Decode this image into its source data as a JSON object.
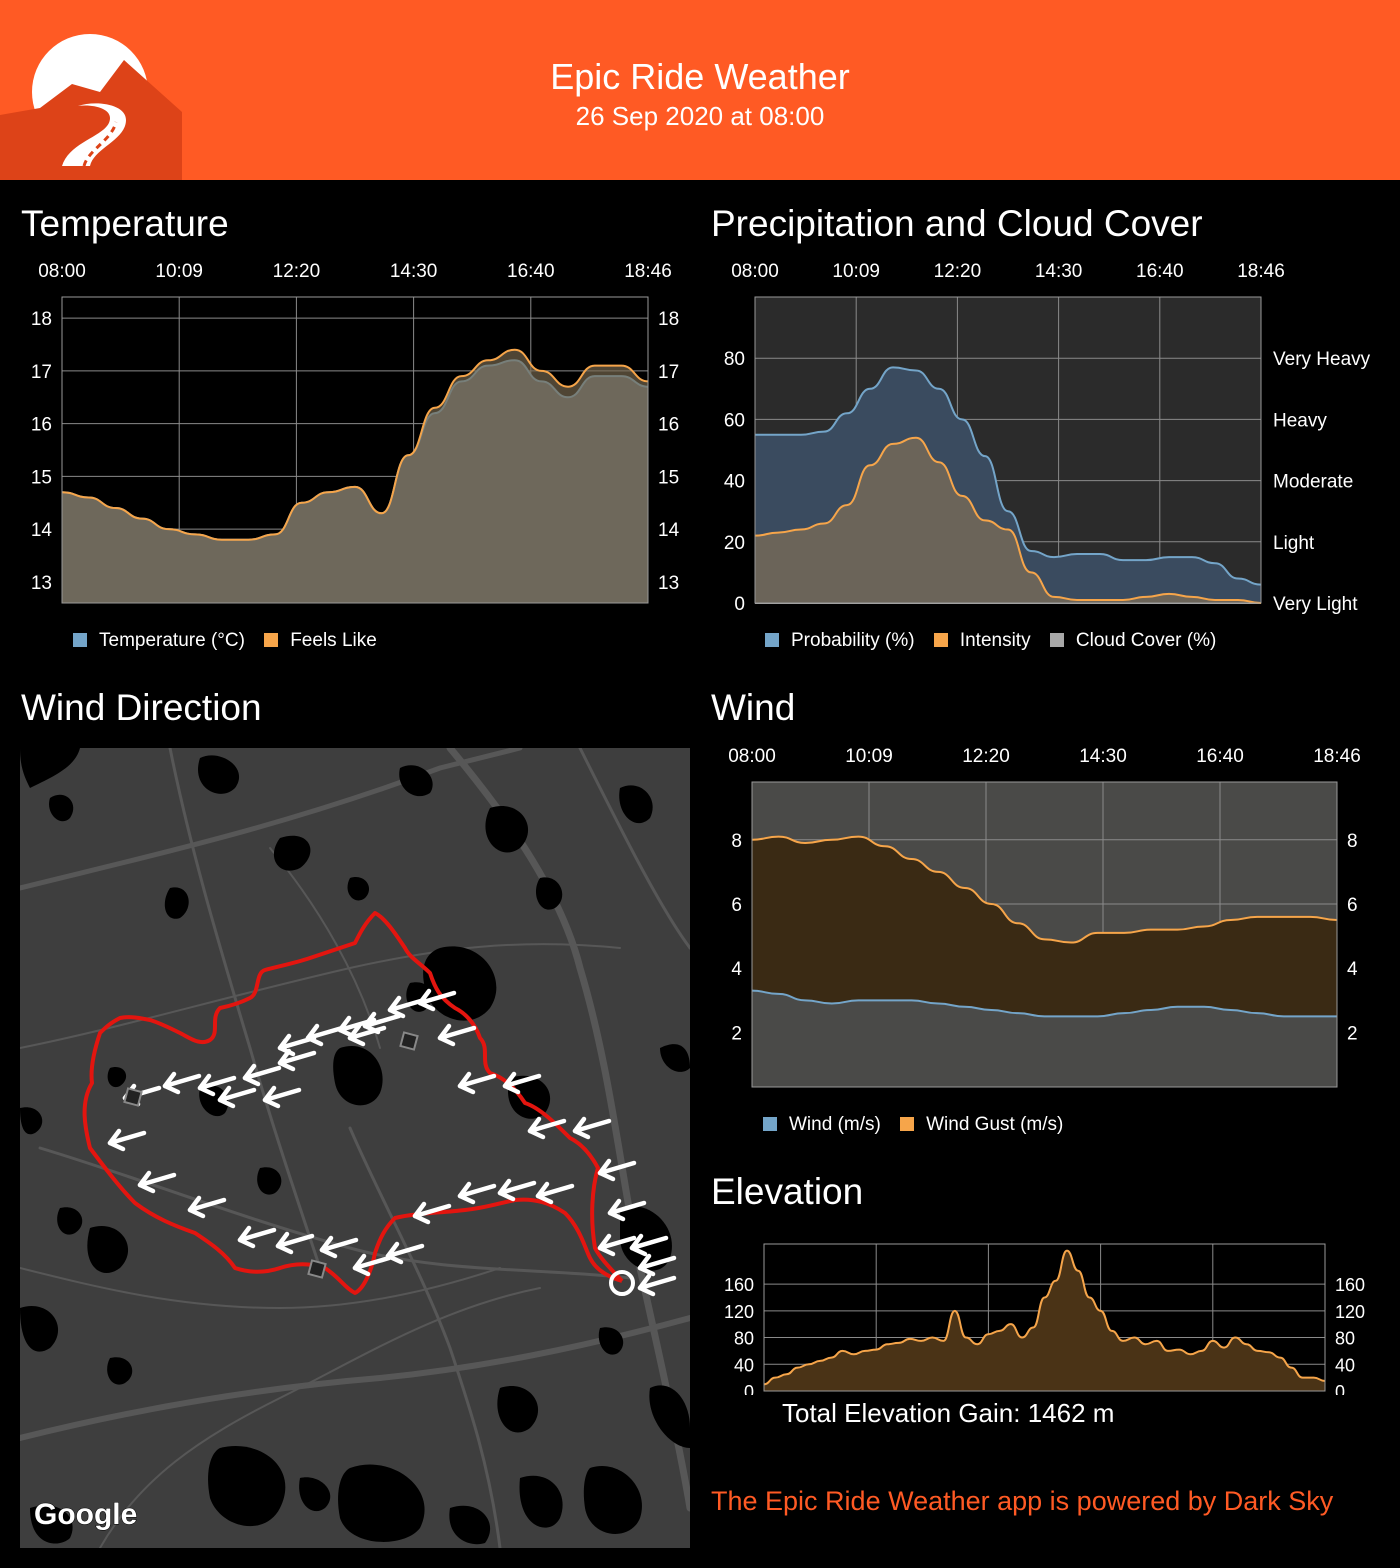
{
  "header": {
    "title": "Epic Ride Weather",
    "subtitle": "26 Sep 2020 at 08:00",
    "logo_icon": "mountain-road-logo-icon",
    "background_color": "#FF5A24"
  },
  "time_ticks": [
    "08:00",
    "10:09",
    "12:20",
    "14:30",
    "16:40",
    "18:46"
  ],
  "sections": {
    "temperature": "Temperature",
    "precipitation": "Precipitation and Cloud Cover",
    "wind_direction": "Wind Direction",
    "wind": "Wind",
    "elevation": "Elevation"
  },
  "legends": {
    "temperature": [
      "Temperature (°C)",
      "Feels Like"
    ],
    "precipitation": [
      "Probability (%)",
      "Intensity",
      "Cloud Cover (%)"
    ],
    "wind": [
      "Wind (m/s)",
      "Wind Gust (m/s)"
    ]
  },
  "colors": {
    "blue": "#74A5C9",
    "orange": "#F6A54A",
    "gray": "#A8A8A8",
    "route_red": "#E3150F",
    "map_bg": "#3E3E3E"
  },
  "map": {
    "attribution": "Google",
    "marker_start_icon": "start-circle-icon",
    "marker_poi_icon": "waypoint-icon",
    "wind_arrow_icon": "wind-arrow-icon"
  },
  "elevation_gain_text": "Total Elevation Gain: 1462 m",
  "footer_text": "The Epic Ride Weather app is powered by Dark Sky",
  "chart_data": [
    {
      "id": "temperature",
      "type": "area",
      "x": [
        "08:00",
        "08:30",
        "09:00",
        "09:30",
        "10:00",
        "10:30",
        "11:00",
        "11:30",
        "12:00",
        "12:30",
        "13:00",
        "13:30",
        "14:00",
        "14:30",
        "15:00",
        "15:30",
        "16:00",
        "16:30",
        "17:00",
        "17:30",
        "18:00",
        "18:30",
        "18:46"
      ],
      "series": [
        {
          "name": "Temperature (°C)",
          "values": [
            14.7,
            14.6,
            14.4,
            14.2,
            14.0,
            13.9,
            13.8,
            13.8,
            13.9,
            14.5,
            14.7,
            14.8,
            14.3,
            15.4,
            16.2,
            16.8,
            17.1,
            17.2,
            16.8,
            16.5,
            16.9,
            16.9,
            16.7
          ]
        },
        {
          "name": "Feels Like",
          "values": [
            14.7,
            14.6,
            14.4,
            14.2,
            14.0,
            13.9,
            13.8,
            13.8,
            13.9,
            14.5,
            14.7,
            14.8,
            14.3,
            15.4,
            16.3,
            16.9,
            17.2,
            17.4,
            17.0,
            16.7,
            17.1,
            17.1,
            16.8
          ]
        }
      ],
      "ylim": [
        12.6,
        18.4
      ],
      "yticks": [
        13,
        14,
        15,
        16,
        17,
        18
      ]
    },
    {
      "id": "precipitation",
      "type": "area",
      "x": [
        "08:00",
        "08:30",
        "09:00",
        "09:30",
        "10:00",
        "10:30",
        "11:00",
        "11:30",
        "12:00",
        "12:30",
        "13:00",
        "13:30",
        "14:00",
        "14:30",
        "15:00",
        "15:30",
        "16:00",
        "16:30",
        "17:00",
        "17:30",
        "18:00",
        "18:30",
        "18:46"
      ],
      "series": [
        {
          "name": "Probability (%)",
          "values": [
            55,
            55,
            55,
            56,
            62,
            70,
            77,
            76,
            70,
            60,
            48,
            30,
            17,
            15,
            16,
            16,
            14,
            14,
            15,
            15,
            13,
            8,
            6
          ]
        },
        {
          "name": "Intensity",
          "values": [
            22,
            23,
            24,
            26,
            32,
            45,
            52,
            54,
            46,
            35,
            27,
            24,
            10,
            2,
            1,
            1,
            1,
            2,
            3,
            2,
            1,
            1,
            0
          ]
        },
        {
          "name": "Cloud Cover (%)",
          "values": [
            0,
            0,
            0,
            0,
            0,
            0,
            0,
            0,
            0,
            0,
            0,
            0,
            0,
            0,
            0,
            0,
            0,
            0,
            0,
            0,
            0,
            0,
            0
          ]
        }
      ],
      "ylim": [
        0,
        100
      ],
      "yticks": [
        0,
        20,
        40,
        60,
        80
      ],
      "right_labels": [
        "Very Light",
        "Light",
        "Moderate",
        "Heavy",
        "Very Heavy"
      ]
    },
    {
      "id": "wind",
      "type": "area",
      "x": [
        "08:00",
        "08:30",
        "09:00",
        "09:30",
        "10:00",
        "10:30",
        "11:00",
        "11:30",
        "12:00",
        "12:30",
        "13:00",
        "13:30",
        "14:00",
        "14:30",
        "15:00",
        "15:30",
        "16:00",
        "16:30",
        "17:00",
        "17:30",
        "18:00",
        "18:30",
        "18:46"
      ],
      "series": [
        {
          "name": "Wind (m/s)",
          "values": [
            3.3,
            3.2,
            3.0,
            2.9,
            3.0,
            3.0,
            3.0,
            2.9,
            2.8,
            2.7,
            2.6,
            2.5,
            2.5,
            2.5,
            2.6,
            2.7,
            2.8,
            2.8,
            2.7,
            2.6,
            2.5,
            2.5,
            2.5
          ]
        },
        {
          "name": "Wind Gust (m/s)",
          "values": [
            8.0,
            8.1,
            7.9,
            8.0,
            8.1,
            7.8,
            7.4,
            7.0,
            6.5,
            6.0,
            5.4,
            4.9,
            4.8,
            5.1,
            5.1,
            5.2,
            5.2,
            5.3,
            5.5,
            5.6,
            5.6,
            5.6,
            5.5
          ]
        }
      ],
      "ylim": [
        0.3,
        9.8
      ],
      "yticks": [
        2,
        4,
        6,
        8
      ]
    },
    {
      "id": "elevation",
      "type": "area",
      "series": [
        {
          "name": "",
          "values": [
            10,
            20,
            25,
            35,
            40,
            45,
            50,
            60,
            55,
            60,
            62,
            70,
            72,
            78,
            75,
            80,
            75,
            120,
            80,
            70,
            85,
            90,
            100,
            80,
            95,
            140,
            165,
            210,
            180,
            140,
            120,
            90,
            75,
            80,
            70,
            75,
            60,
            62,
            55,
            60,
            75,
            65,
            80,
            70,
            60,
            58,
            50,
            35,
            20,
            20,
            15
          ]
        }
      ],
      "ylim": [
        0,
        220
      ],
      "yticks": [
        0,
        40,
        80,
        120,
        160
      ]
    }
  ]
}
